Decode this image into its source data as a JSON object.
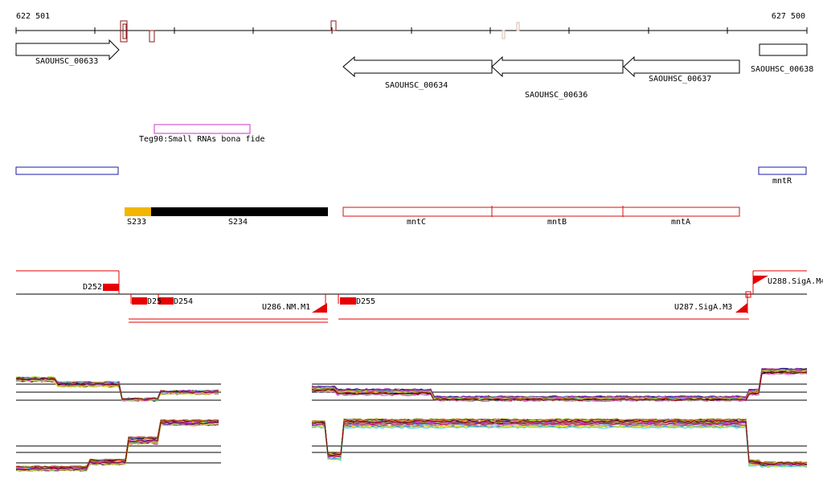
{
  "coordinates": {
    "start": "622 501",
    "end": "627 500"
  },
  "genes": [
    {
      "id": "SAOUHSC_00633"
    },
    {
      "id": "SAOUHSC_00634"
    },
    {
      "id": "SAOUHSC_00636"
    },
    {
      "id": "SAOUHSC_00637"
    },
    {
      "id": "SAOUHSC_00638"
    }
  ],
  "small_rna": {
    "label": "Teg90:Small RNAs bona fide",
    "color": "#cc33cc"
  },
  "regulator": {
    "label": "mntR",
    "color": "#1a1aaa"
  },
  "segments": [
    {
      "label": "S233",
      "color": "#f2b600"
    },
    {
      "label": "S234",
      "color": "#000000"
    },
    {
      "label": "mntC",
      "color": "#d41111"
    },
    {
      "label": "mntB",
      "color": "#d41111"
    },
    {
      "label": "mntA",
      "color": "#d41111"
    }
  ],
  "transcripts": {
    "color": "#e60000",
    "downstream": [
      "D252",
      "D25",
      "D254",
      "D255"
    ],
    "upstream": [
      "U286.NM.M1",
      "U287.SigA.M3",
      "U288.SigA.M4"
    ]
  },
  "expression": {
    "series_colors": [
      "#e6194b",
      "#3cb44b",
      "#4363d8",
      "#f58231",
      "#911eb4",
      "#42d4f4",
      "#f032e6",
      "#bfef45",
      "#9a6324",
      "#800000",
      "#469990",
      "#000075",
      "#808000",
      "#a9a9a9",
      "#ffe119",
      "#000000"
    ]
  }
}
